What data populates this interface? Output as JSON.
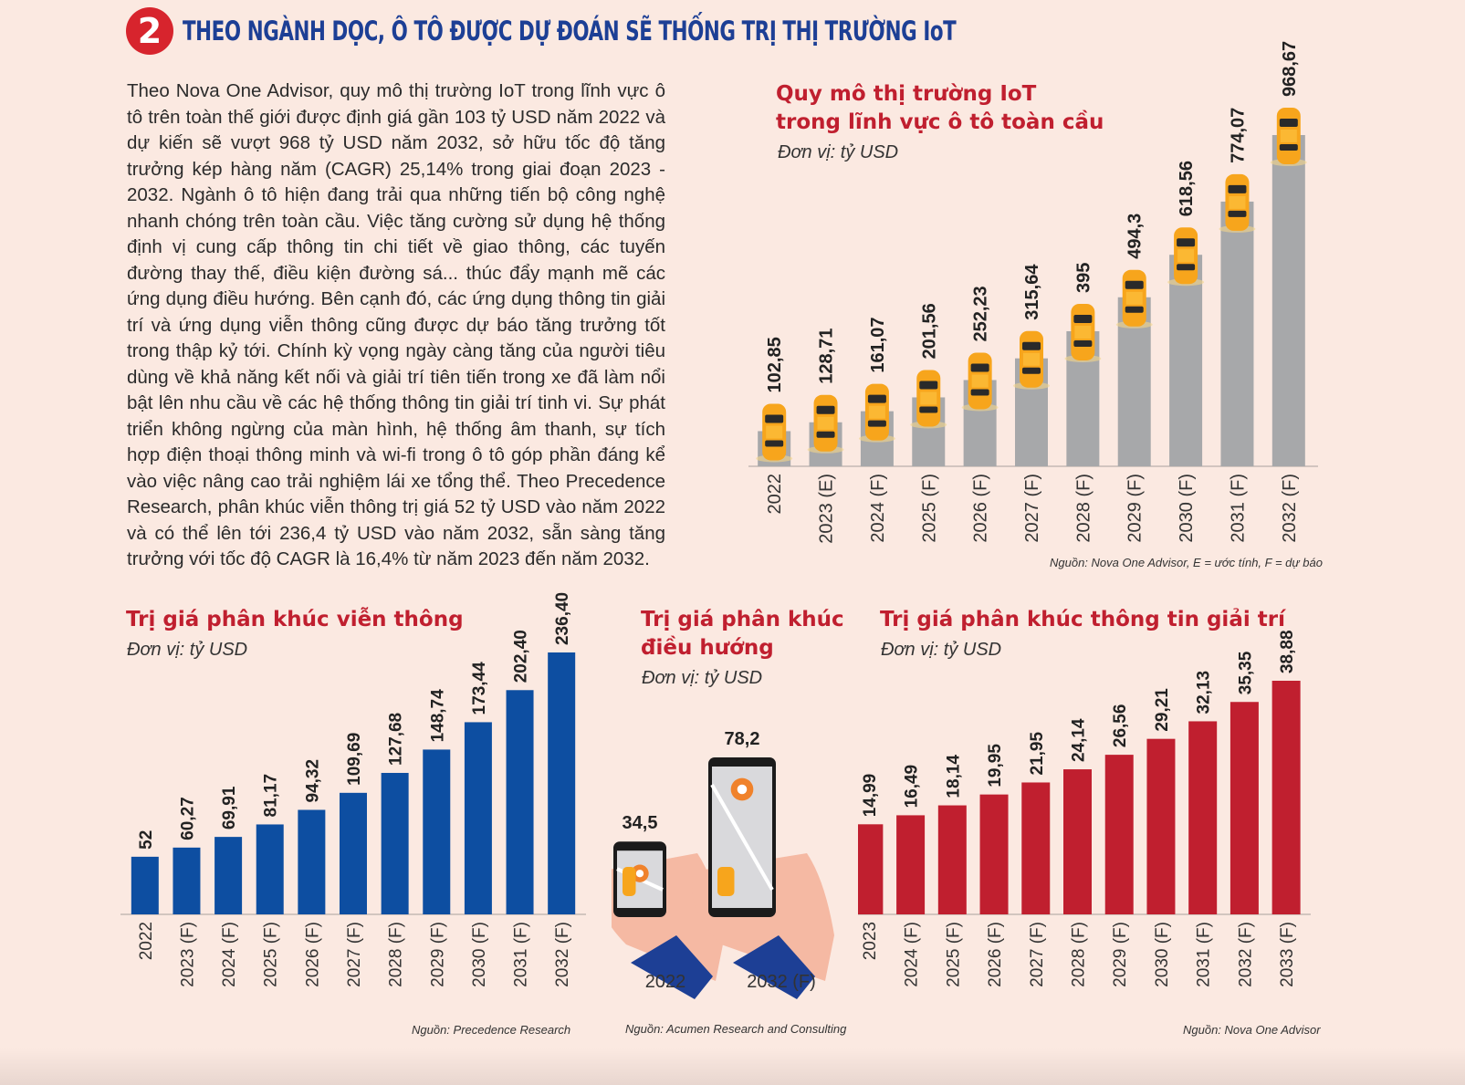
{
  "header": {
    "number": "2",
    "title": "THEO NGÀNH DỌC, Ô TÔ ĐƯỢC DỰ ĐOÁN SẼ THỐNG TRỊ THỊ TRƯỜNG IoT"
  },
  "article": {
    "text": "Theo Nova One Advisor, quy mô thị trường IoT trong lĩnh vực ô tô trên toàn thế giới được định giá gần 103 tỷ USD năm 2022 và dự kiến sẽ vượt 968 tỷ USD năm 2032, sở hữu tốc độ tăng trưởng kép hàng năm (CAGR) 25,14% trong giai đoạn 2023 - 2032. Ngành ô tô hiện đang trải qua những tiến bộ công nghệ nhanh chóng trên toàn cầu. Việc tăng cường sử dụng hệ thống định vị cung cấp thông tin chi tiết về giao thông, các tuyến đường thay thế, điều kiện đường sá... thúc đẩy mạnh mẽ các ứng dụng điều hướng. Bên cạnh đó, các ứng dụng thông tin giải trí và ứng dụng viễn thông cũng được dự báo tăng trưởng tốt trong thập kỷ tới. Chính kỳ vọng ngày càng tăng của người tiêu dùng về khả năng kết nối và giải trí tiên tiến trong xe đã làm nổi bật lên nhu cầu về các hệ thống thông tin giải trí tinh vi. Sự phát triển không ngừng của màn hình, hệ thống âm thanh, sự tích hợp điện thoại thông minh và wi-fi trong ô tô góp phần đáng kể vào việc nâng cao trải nghiệm lái xe tổng thể. Theo Precedence Research, phân khúc viễn thông trị giá 52 tỷ USD vào năm 2022 và có thể lên tới 236,4 tỷ USD vào năm 2032, sẵn sàng tăng trưởng với tốc độ CAGR là 16,4% từ năm 2023 đến năm 2032."
  },
  "chart_data": [
    {
      "type": "bar",
      "title_line1": "Quy mô thị trường IoT",
      "title_line2": "trong lĩnh vực ô tô toàn cầu",
      "unit": "Đơn vị: tỷ USD",
      "categories": [
        "2022",
        "2023 (E)",
        "2024 (F)",
        "2025 (F)",
        "2026 (F)",
        "2027 (F)",
        "2028 (F)",
        "2029 (F)",
        "2030 (F)",
        "2031 (F)",
        "2032 (F)"
      ],
      "values": [
        102.85,
        128.71,
        161.07,
        201.56,
        252.23,
        315.64,
        395,
        494.3,
        618.56,
        774.07,
        968.67
      ],
      "labels": [
        "102,85",
        "128,71",
        "161,07",
        "201,56",
        "252,23",
        "315,64",
        "395",
        "494,3",
        "618,56",
        "774,07",
        "968,67"
      ],
      "source": "Nguồn: Nova One Advisor, E = ước tính, F = dự báo",
      "bar_color": "#a7a8aa",
      "marker_color": "#f7a51c"
    },
    {
      "type": "bar",
      "title": "Trị giá phân khúc viễn thông",
      "unit": "Đơn vị: tỷ USD",
      "categories": [
        "2022",
        "2023 (F)",
        "2024 (F)",
        "2025 (F)",
        "2026 (F)",
        "2027 (F)",
        "2028 (F)",
        "2029 (F)",
        "2030 (F)",
        "2031 (F)",
        "2032 (F)"
      ],
      "values": [
        52,
        60.27,
        69.91,
        81.17,
        94.32,
        109.69,
        127.68,
        148.74,
        173.44,
        202.4,
        236.4
      ],
      "labels": [
        "52",
        "60,27",
        "69,91",
        "81,17",
        "94,32",
        "109,69",
        "127,68",
        "148,74",
        "173,44",
        "202,40",
        "236,40"
      ],
      "source": "Nguồn: Precedence Research",
      "bar_color": "#0d4ea1"
    },
    {
      "type": "bar",
      "title_line1": "Trị giá phân khúc",
      "title_line2": "điều hướng",
      "unit": "Đơn vị: tỷ USD",
      "categories": [
        "2022",
        "2032 (F)"
      ],
      "values": [
        34.5,
        78.2
      ],
      "labels": [
        "34,5",
        "78,2"
      ],
      "source": "Nguồn: Acumen Research and Consulting"
    },
    {
      "type": "bar",
      "title": "Trị giá phân khúc thông tin giải trí",
      "unit": "Đơn vị: tỷ USD",
      "categories": [
        "2023",
        "2024 (F)",
        "2025 (F)",
        "2026 (F)",
        "2027 (F)",
        "2028 (F)",
        "2029 (F)",
        "2030 (F)",
        "2031 (F)",
        "2032 (F)",
        "2033 (F)"
      ],
      "values": [
        14.99,
        16.49,
        18.14,
        19.95,
        21.95,
        24.14,
        26.56,
        29.21,
        32.13,
        35.35,
        38.88
      ],
      "labels": [
        "14,99",
        "16,49",
        "18,14",
        "19,95",
        "21,95",
        "24,14",
        "26,56",
        "29,21",
        "32,13",
        "35,35",
        "38,88"
      ],
      "source": "Nguồn: Nova One Advisor",
      "bar_color": "#c01f2f"
    }
  ]
}
